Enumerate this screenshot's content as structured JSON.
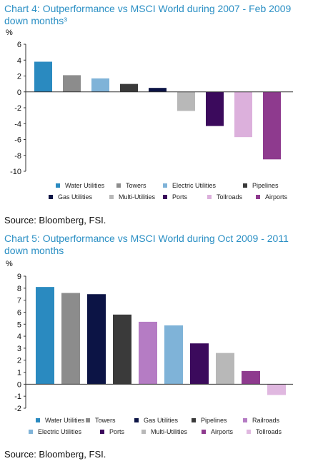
{
  "charts": [
    {
      "title": "Chart 4: Outperformance vs MSCI World during 2007 - Feb 2009 down months³",
      "ylabel": "%",
      "source": "Source: Bloomberg, FSI."
    },
    {
      "title": "Chart 5: Outperformance vs MSCI World during Oct 2009 - 2011 down months",
      "ylabel": "%",
      "source": "Source: Bloomberg, FSI."
    }
  ],
  "chart_data": [
    {
      "type": "bar",
      "title": "Chart 4: Outperformance vs MSCI World during 2007 - Feb 2009 down months³",
      "ylabel": "%",
      "ylim": [
        -10,
        6
      ],
      "yticks": [
        6,
        4,
        2,
        0,
        -2,
        -4,
        -6,
        -8,
        -10
      ],
      "grid": false,
      "legend_position": "bottom",
      "categories": [
        "Water Utilities",
        "Towers",
        "Electric Utilities",
        "Pipelines",
        "Gas Utilities",
        "Multi-Utilities",
        "Ports",
        "Tollroads",
        "Airports"
      ],
      "values": [
        3.8,
        2.1,
        1.7,
        1.0,
        0.5,
        -2.4,
        -4.3,
        -5.7,
        -8.5
      ],
      "colors": [
        "#2a8ac0",
        "#8c8c8c",
        "#7fb3d8",
        "#3a3a3a",
        "#0c1445",
        "#b8b8b8",
        "#3b0a5c",
        "#dcb0dc",
        "#8e3a8e"
      ],
      "legend_rows": [
        [
          "Water Utilities",
          "Towers",
          "Electric Utilities",
          "Pipelines"
        ],
        [
          "Gas Utilities",
          "Multi-Utilities",
          "Ports",
          "Tollroads",
          "Airports"
        ]
      ]
    },
    {
      "type": "bar",
      "title": "Chart 5: Outperformance vs MSCI World during Oct 2009 - 2011 down months",
      "ylabel": "%",
      "ylim": [
        -2,
        9
      ],
      "yticks": [
        9,
        8,
        7,
        6,
        5,
        4,
        3,
        2,
        1,
        0,
        -1,
        -2
      ],
      "grid": false,
      "legend_position": "bottom",
      "categories": [
        "Water Utilities",
        "Towers",
        "Gas Utilities",
        "Pipelines",
        "Railroads",
        "Electric Utilities",
        "Ports",
        "Multi-Utilities",
        "Airports",
        "Tollroads"
      ],
      "values": [
        8.1,
        7.6,
        7.5,
        5.8,
        5.2,
        4.9,
        3.4,
        2.6,
        1.1,
        -0.9
      ],
      "colors": [
        "#2a8ac0",
        "#8c8c8c",
        "#0c1445",
        "#3a3a3a",
        "#b57cc4",
        "#7fb3d8",
        "#3b0a5c",
        "#b8b8b8",
        "#8e3a8e",
        "#e0b8e0"
      ],
      "legend_rows": [
        [
          "Water Utilities",
          "Towers",
          "Gas Utilities",
          "Pipelines",
          "Railroads"
        ],
        [
          "Electric Utilities",
          "Ports",
          "Multi-Utilities",
          "Airports",
          "Tollroads"
        ]
      ]
    }
  ]
}
